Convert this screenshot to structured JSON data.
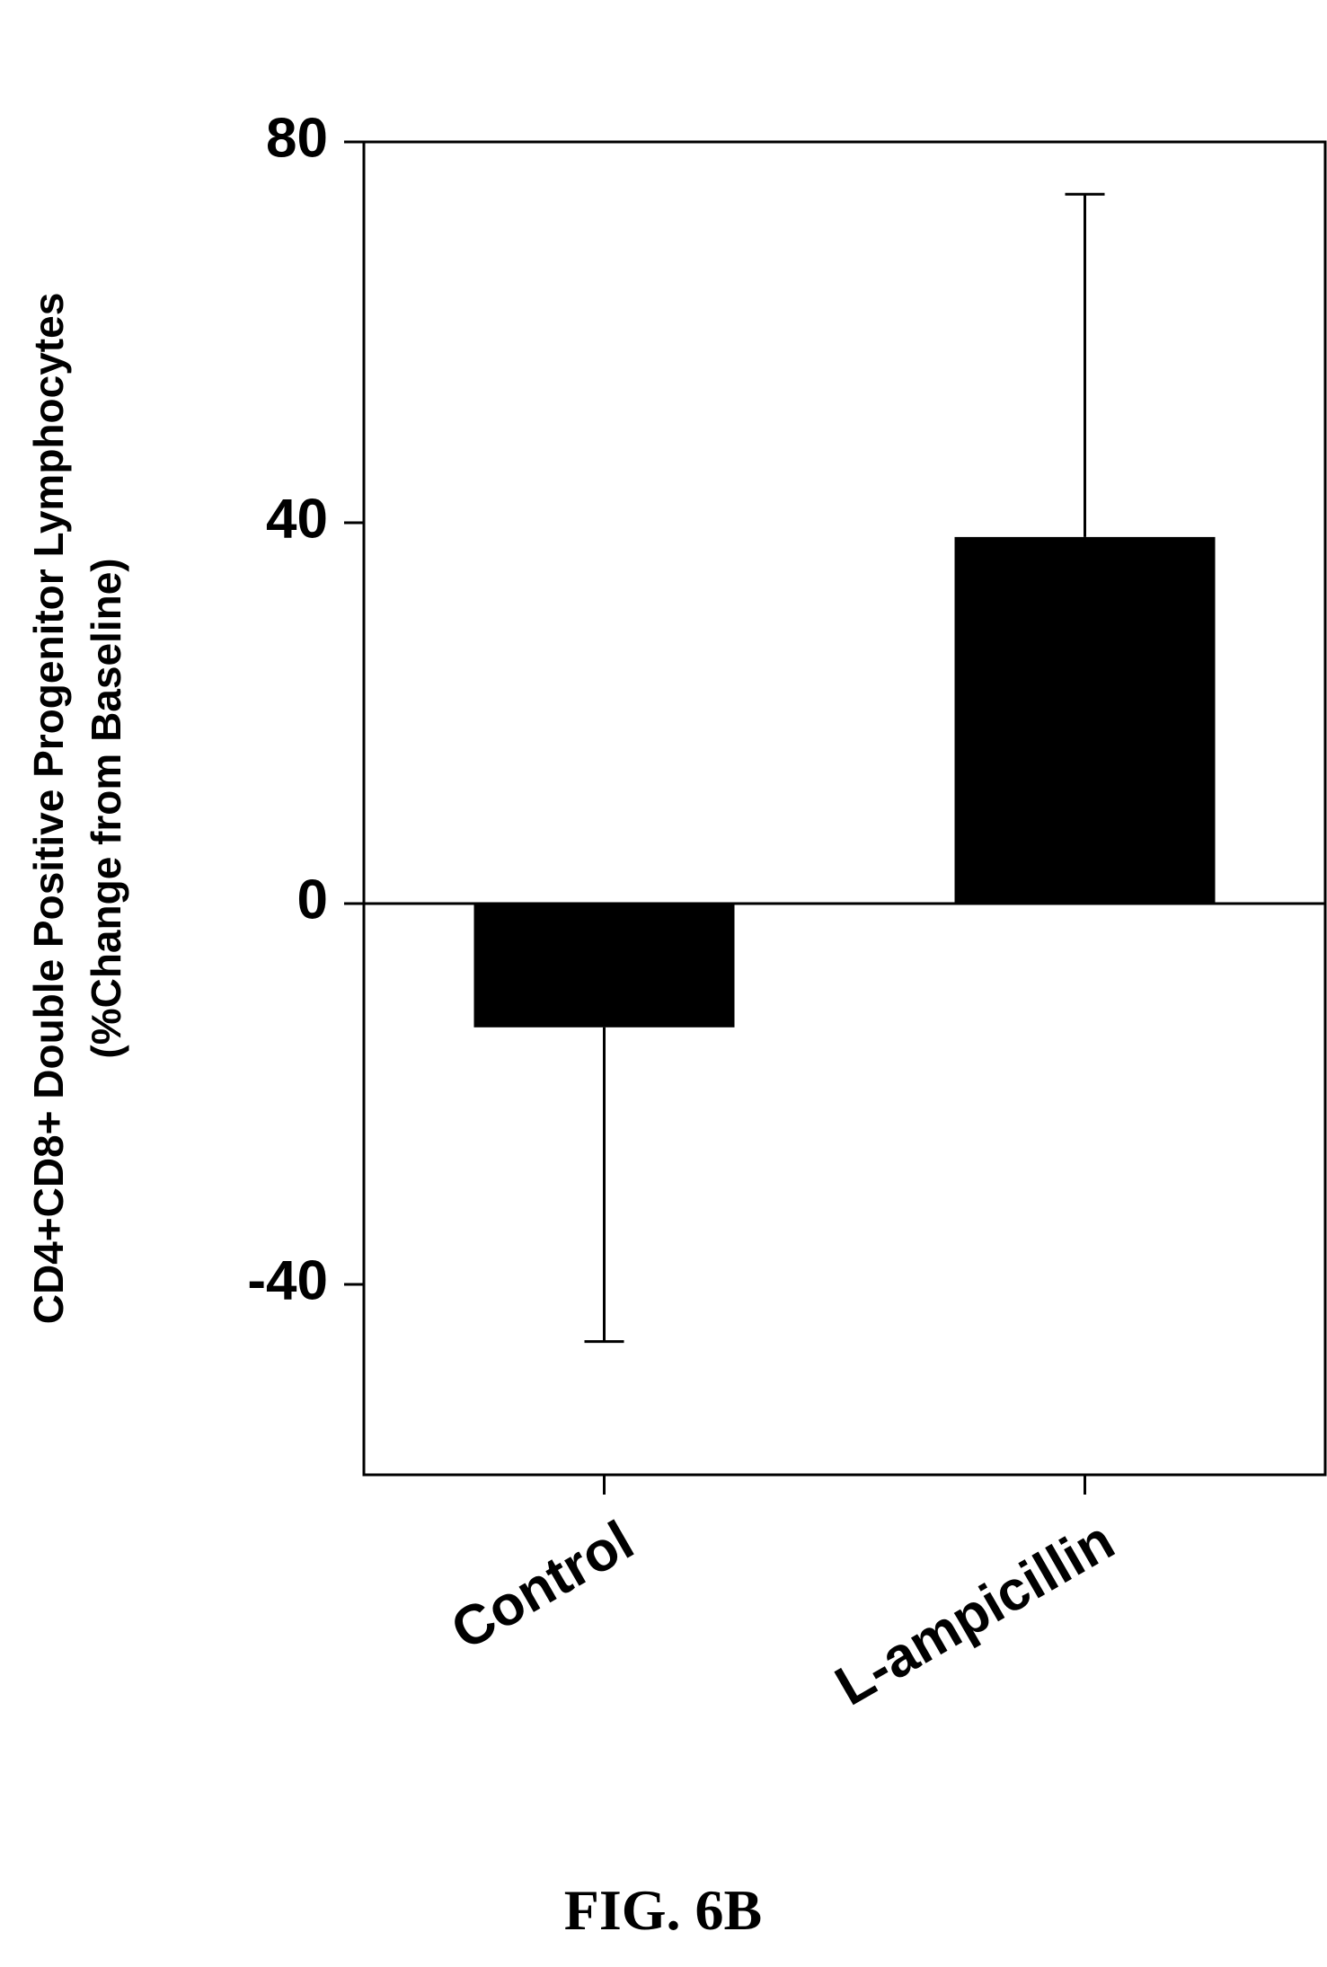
{
  "chart_data": {
    "type": "bar",
    "categories": [
      "Control",
      "L-ampicillin"
    ],
    "values": [
      -13,
      38.5
    ],
    "error_bars": [
      {
        "direction": "down",
        "bound": -46
      },
      {
        "direction": "up",
        "bound": 74.5
      }
    ],
    "ylabel_lines": [
      "CD4+CD8+ Double Positive Progenitor Lymphocytes",
      "(%Change from Baseline)"
    ],
    "ylim": [
      -60,
      80
    ],
    "yticks": [
      80,
      40,
      0,
      -40
    ],
    "ytick_labels": [
      "80",
      "40",
      "0",
      "-40"
    ],
    "bar_color": "#000000",
    "grid": false,
    "zero_line": true
  },
  "caption": "FIG. 6B"
}
